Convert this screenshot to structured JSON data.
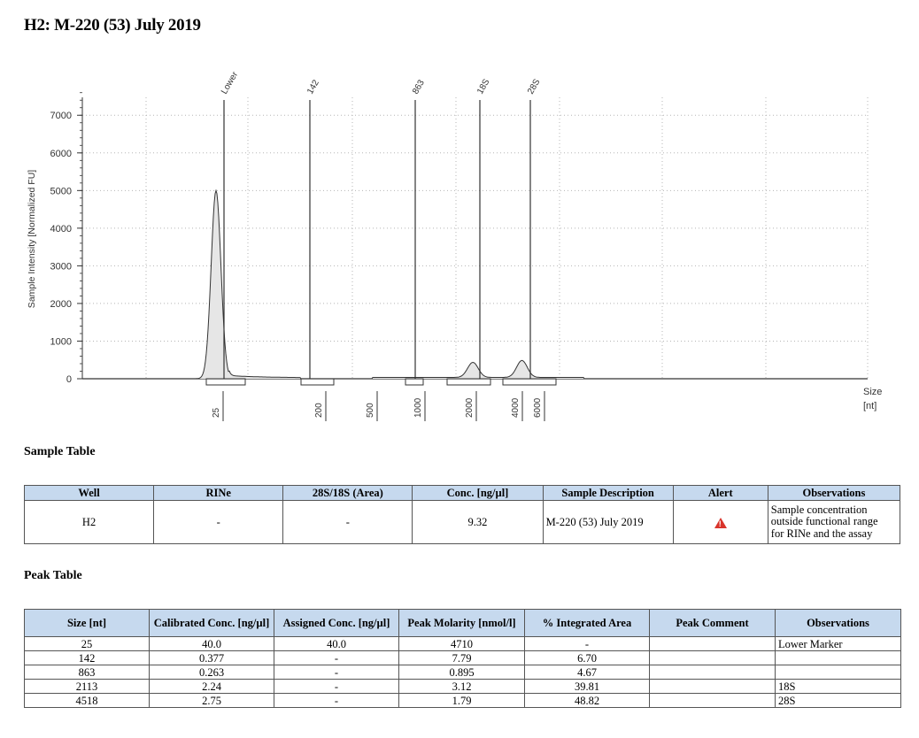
{
  "title": "H2: M-220 (53) July 2019",
  "chart_data": {
    "type": "line",
    "ylabel": "Sample Intensity [Normalized FU]",
    "xlabel": "Size",
    "xunit": "[nt]",
    "yticks": [
      0,
      1000,
      2000,
      3000,
      4000,
      5000,
      6000,
      7000
    ],
    "ylim": [
      0,
      7800
    ],
    "grid": true,
    "size_ticks": [
      "25",
      "200",
      "500",
      "1000",
      "2000",
      "4000",
      "6000"
    ],
    "markers": [
      {
        "label": "Lower",
        "size": 25
      },
      {
        "label": "142",
        "size": 142
      },
      {
        "label": "863",
        "size": 863
      },
      {
        "label": "18S",
        "size": 2113
      },
      {
        "label": "28S",
        "size": 4518
      }
    ],
    "peaks": [
      {
        "size": 25,
        "height": 5000
      },
      {
        "size": 2113,
        "height": 400
      },
      {
        "size": 4518,
        "height": 450
      }
    ]
  },
  "sample_table": {
    "heading": "Sample Table",
    "columns": [
      "Well",
      "RINe",
      "28S/18S (Area)",
      "Conc. [ng/µl]",
      "Sample Description",
      "Alert",
      "Observations"
    ],
    "rows": [
      {
        "well": "H2",
        "rine": "-",
        "ratio": "-",
        "conc": "9.32",
        "description": "M-220 (53) July 2019",
        "alert_icon": "warning-triangle-icon",
        "observations": [
          "Sample concentration",
          "outside functional range",
          "for RINe and the assay"
        ]
      }
    ]
  },
  "peak_table": {
    "heading": "Peak Table",
    "columns": [
      "Size [nt]",
      "Calibrated Conc. [ng/µl]",
      "Assigned Conc. [ng/µl]",
      "Peak Molarity [nmol/l]",
      "% Integrated Area",
      "Peak Comment",
      "Observations"
    ],
    "rows": [
      {
        "size": "25",
        "cal": "40.0",
        "assigned": "40.0",
        "molarity": "4710",
        "area": "-",
        "comment": "",
        "obs": "Lower Marker"
      },
      {
        "size": "142",
        "cal": "0.377",
        "assigned": "-",
        "molarity": "7.79",
        "area": "6.70",
        "comment": "",
        "obs": ""
      },
      {
        "size": "863",
        "cal": "0.263",
        "assigned": "-",
        "molarity": "0.895",
        "area": "4.67",
        "comment": "",
        "obs": ""
      },
      {
        "size": "2113",
        "cal": "2.24",
        "assigned": "-",
        "molarity": "3.12",
        "area": "39.81",
        "comment": "",
        "obs": "18S"
      },
      {
        "size": "4518",
        "cal": "2.75",
        "assigned": "-",
        "molarity": "1.79",
        "area": "48.82",
        "comment": "",
        "obs": "28S"
      }
    ]
  }
}
